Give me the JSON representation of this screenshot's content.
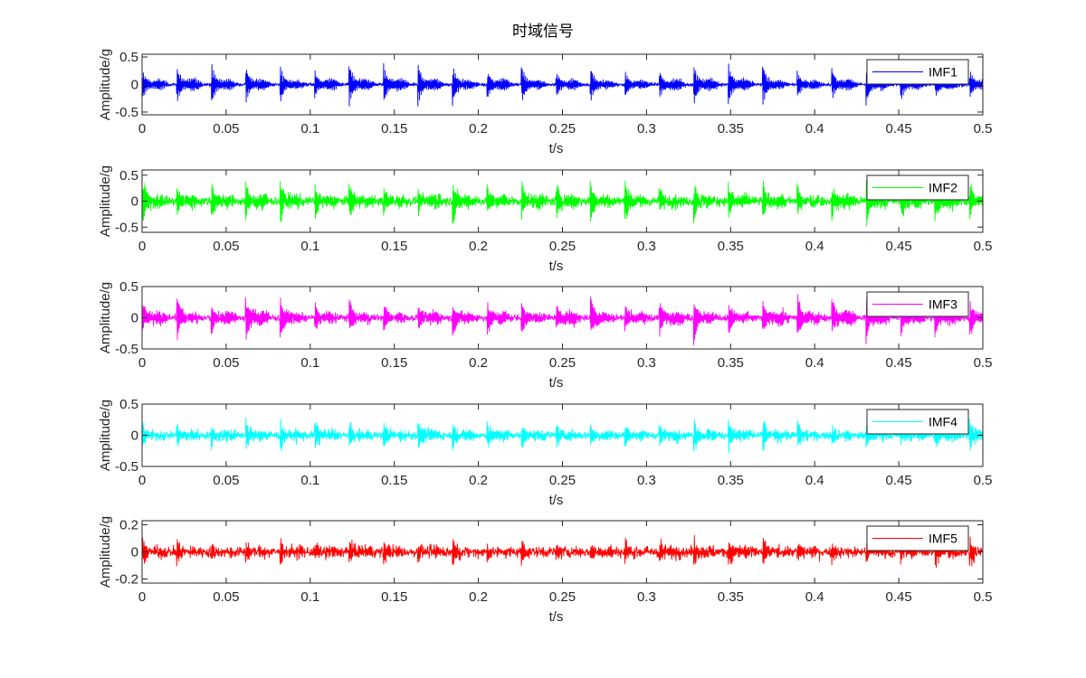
{
  "figure": {
    "title": "时域信号"
  },
  "chart_data": [
    {
      "type": "line",
      "series": [
        {
          "name": "IMF1",
          "color": "#0000ff",
          "amplitude": 0.45,
          "noise": 0.025,
          "carrier_hz": 1800
        }
      ],
      "xlabel": "t/s",
      "ylabel": "Amplitude/g",
      "xlim": [
        0,
        0.5
      ],
      "ylim": [
        -0.55,
        0.55
      ],
      "xticks": [
        "0",
        "0.05",
        "0.1",
        "0.15",
        "0.2",
        "0.25",
        "0.3",
        "0.35",
        "0.4",
        "0.45",
        "0.5"
      ],
      "yticks": [
        "-0.5",
        "0",
        "0.5"
      ],
      "impulse_period_s": 0.0205,
      "legend": "top-right"
    },
    {
      "type": "line",
      "series": [
        {
          "name": "IMF2",
          "color": "#00ff00",
          "amplitude": 0.55,
          "noise": 0.08,
          "carrier_hz": 1200
        }
      ],
      "xlabel": "t/s",
      "ylabel": "Amplitude/g",
      "xlim": [
        0,
        0.5
      ],
      "ylim": [
        -0.6,
        0.6
      ],
      "xticks": [
        "0",
        "0.05",
        "0.1",
        "0.15",
        "0.2",
        "0.25",
        "0.3",
        "0.35",
        "0.4",
        "0.45",
        "0.5"
      ],
      "yticks": [
        "-0.5",
        "0",
        "0.5"
      ],
      "impulse_period_s": 0.0205,
      "legend": "top-right"
    },
    {
      "type": "line",
      "series": [
        {
          "name": "IMF3",
          "color": "#ff00ff",
          "amplitude": 0.45,
          "noise": 0.05,
          "carrier_hz": 800
        }
      ],
      "xlabel": "t/s",
      "ylabel": "Amplitude/g",
      "xlim": [
        0,
        0.5
      ],
      "ylim": [
        -0.5,
        0.5
      ],
      "xticks": [
        "0",
        "0.05",
        "0.1",
        "0.15",
        "0.2",
        "0.25",
        "0.3",
        "0.35",
        "0.4",
        "0.45",
        "0.5"
      ],
      "yticks": [
        "-0.5",
        "0",
        "0.5"
      ],
      "impulse_period_s": 0.0205,
      "legend": "top-right"
    },
    {
      "type": "line",
      "series": [
        {
          "name": "IMF4",
          "color": "#00ffff",
          "amplitude": 0.3,
          "noise": 0.06,
          "carrier_hz": 500
        }
      ],
      "xlabel": "t/s",
      "ylabel": "Amplitude/g",
      "xlim": [
        0,
        0.5
      ],
      "ylim": [
        -0.5,
        0.5
      ],
      "xticks": [
        "0",
        "0.05",
        "0.1",
        "0.15",
        "0.2",
        "0.25",
        "0.3",
        "0.35",
        "0.4",
        "0.45",
        "0.5"
      ],
      "yticks": [
        "-0.5",
        "0",
        "0.5"
      ],
      "impulse_period_s": 0.0205,
      "legend": "top-right"
    },
    {
      "type": "line",
      "series": [
        {
          "name": "IMF5",
          "color": "#ff0000",
          "amplitude": 0.12,
          "noise": 0.035,
          "carrier_hz": 300
        }
      ],
      "xlabel": "t/s",
      "ylabel": "Amplitude/g",
      "xlim": [
        0,
        0.5
      ],
      "ylim": [
        -0.23,
        0.23
      ],
      "xticks": [
        "0",
        "0.05",
        "0.1",
        "0.15",
        "0.2",
        "0.25",
        "0.3",
        "0.35",
        "0.4",
        "0.45",
        "0.5"
      ],
      "yticks": [
        "-0.2",
        "0",
        "0.2"
      ],
      "impulse_period_s": 0.0205,
      "legend": "top-right"
    }
  ]
}
